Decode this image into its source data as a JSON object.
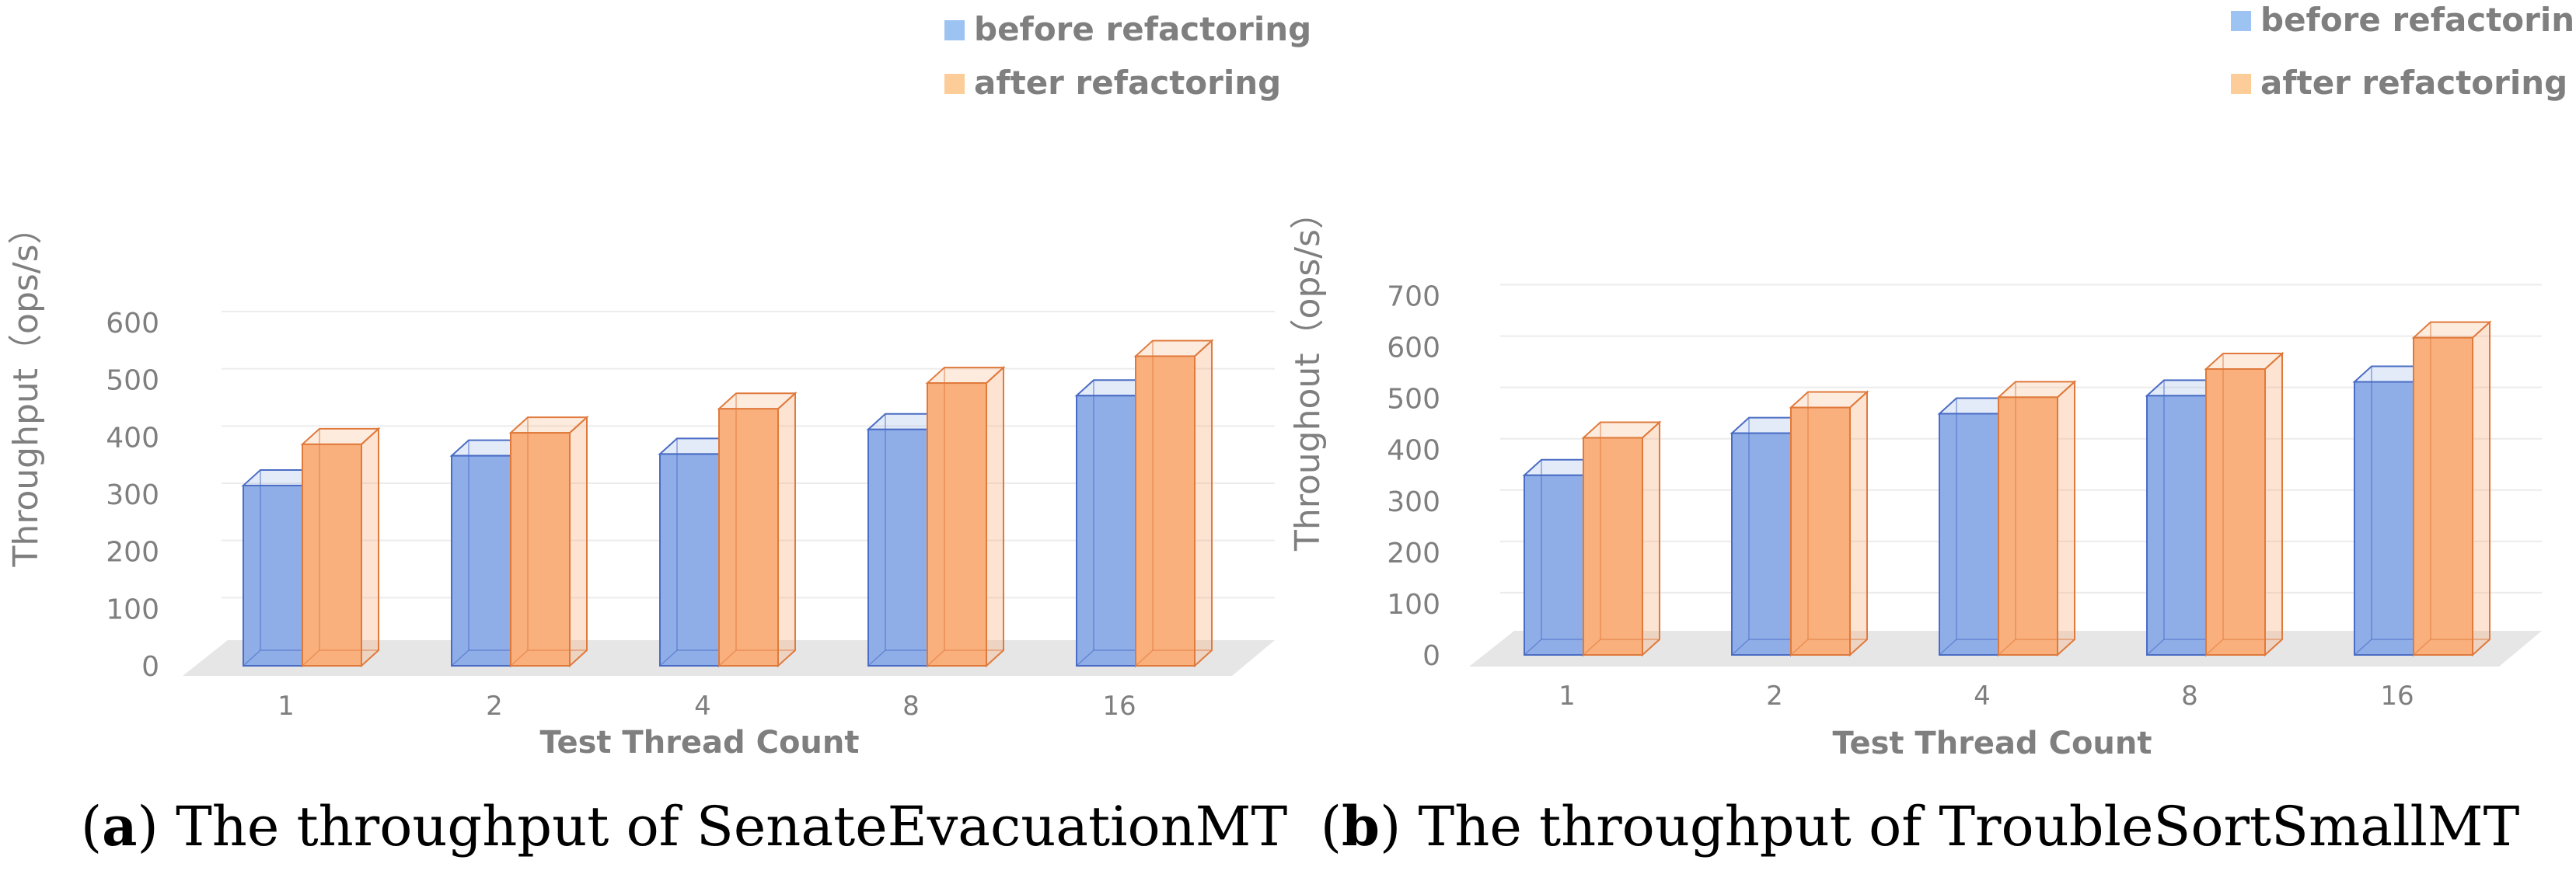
{
  "figure": {
    "captions": [
      {
        "label": "a",
        "open": "(",
        "close": ")",
        "text": " The throughput of SenateEvacuationMT"
      },
      {
        "label": "b",
        "open": "(",
        "close": ")",
        "text": " The throughput of TroubleSortSmallMT"
      }
    ]
  },
  "colors": {
    "before_fill": "#8faee8",
    "before_edge": "#4a6cc4",
    "before_legend": "#9dc3f2",
    "after_fill": "#f9b07d",
    "after_edge": "#e07a3c",
    "after_legend": "#fccd98",
    "text": "#7f7f7f",
    "grid": "#ececec",
    "floor": "#e6e6e6",
    "caption": "#000000"
  },
  "chart_data": [
    {
      "type": "bar",
      "title": "",
      "categories": [
        "1",
        "2",
        "4",
        "8",
        "16"
      ],
      "series": [
        {
          "name": "before refactoring",
          "values": [
            315,
            367,
            370,
            413,
            472
          ]
        },
        {
          "name": "after refactoring",
          "values": [
            387,
            407,
            449,
            494,
            541
          ]
        }
      ],
      "xlabel": "Test Thread Count",
      "ylabel": "Throughput（ops/s）",
      "ylim": [
        0,
        600
      ],
      "yticks": [
        0,
        100,
        200,
        300,
        400,
        500,
        600
      ],
      "grid": true,
      "legend": "top-right"
    },
    {
      "type": "bar",
      "title": "",
      "categories": [
        "1",
        "2",
        "4",
        "8",
        "16"
      ],
      "series": [
        {
          "name": "before refactoring",
          "values": [
            350,
            432,
            470,
            505,
            532
          ]
        },
        {
          "name": "after refactoring",
          "values": [
            423,
            482,
            502,
            557,
            618
          ]
        }
      ],
      "xlabel": "Test Thread Count",
      "ylabel": "Throughout（ops/s）",
      "ylim": [
        0,
        700
      ],
      "yticks": [
        0,
        100,
        200,
        300,
        400,
        500,
        600,
        700
      ],
      "grid": true,
      "legend": "top-right"
    }
  ]
}
